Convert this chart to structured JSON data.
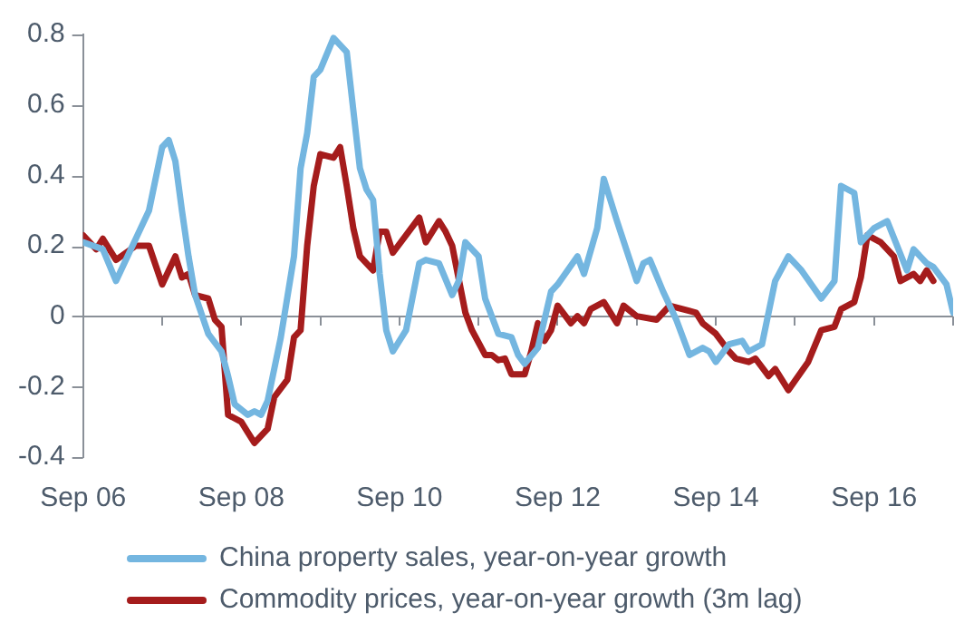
{
  "chart_data": {
    "type": "line",
    "xlim": [
      "2006-09",
      "2017-09"
    ],
    "xticks": [
      {
        "value": "2006-09",
        "label": "Sep 06"
      },
      {
        "value": "2007-09",
        "label": null
      },
      {
        "value": "2008-09",
        "label": "Sep 08"
      },
      {
        "value": "2009-09",
        "label": null
      },
      {
        "value": "2010-09",
        "label": "Sep 10"
      },
      {
        "value": "2011-09",
        "label": null
      },
      {
        "value": "2012-09",
        "label": "Sep 12"
      },
      {
        "value": "2013-09",
        "label": null
      },
      {
        "value": "2014-09",
        "label": "Sep 14"
      },
      {
        "value": "2015-09",
        "label": null
      },
      {
        "value": "2016-09",
        "label": "Sep 16"
      },
      {
        "value": "2017-09",
        "label": null
      }
    ],
    "ylim": [
      -0.4,
      0.8
    ],
    "yticks": [
      -0.4,
      -0.2,
      0,
      0.2,
      0.4,
      0.6,
      0.8
    ],
    "grid": false,
    "ref_lines": [
      {
        "axis": "y",
        "value": 0,
        "color": "#8a9098",
        "line_style": "solid"
      }
    ],
    "legend": "bottom",
    "marker": "none",
    "line_style": "solid",
    "series": [
      {
        "name": "China property sales, year-on-year growth",
        "color": "#74b6e0",
        "x": [
          "2006-09",
          "2006-12",
          "2007-02",
          "2007-05",
          "2007-07",
          "2007-09",
          "2007-10",
          "2007-11",
          "2007-12",
          "2008-01",
          "2008-02",
          "2008-04",
          "2008-06",
          "2008-07",
          "2008-08",
          "2008-10",
          "2008-11",
          "2008-12",
          "2009-01",
          "2009-03",
          "2009-05",
          "2009-06",
          "2009-07",
          "2009-08",
          "2009-09",
          "2009-11",
          "2010-01",
          "2010-03",
          "2010-04",
          "2010-05",
          "2010-06",
          "2010-07",
          "2010-08",
          "2010-10",
          "2010-12",
          "2011-01",
          "2011-03",
          "2011-05",
          "2011-06",
          "2011-07",
          "2011-09",
          "2011-10",
          "2011-12",
          "2012-02",
          "2012-03",
          "2012-04",
          "2012-06",
          "2012-08",
          "2012-09",
          "2012-12",
          "2013-01",
          "2013-03",
          "2013-04",
          "2013-06",
          "2013-09",
          "2013-10",
          "2013-11",
          "2014-01",
          "2014-03",
          "2014-05",
          "2014-07",
          "2014-08",
          "2014-09",
          "2014-11",
          "2015-01",
          "2015-02",
          "2015-04",
          "2015-06",
          "2015-08",
          "2015-10",
          "2016-01",
          "2016-03",
          "2016-04",
          "2016-06",
          "2016-07",
          "2016-09",
          "2016-11",
          "2017-02",
          "2017-03",
          "2017-05",
          "2017-06",
          "2017-08",
          "2017-09"
        ],
        "values": [
          0.21,
          0.19,
          0.1,
          0.22,
          0.3,
          0.48,
          0.5,
          0.44,
          0.3,
          0.17,
          0.06,
          -0.05,
          -0.1,
          -0.17,
          -0.25,
          -0.28,
          -0.27,
          -0.28,
          -0.24,
          -0.06,
          0.17,
          0.42,
          0.52,
          0.68,
          0.7,
          0.79,
          0.75,
          0.42,
          0.36,
          0.33,
          0.12,
          -0.04,
          -0.1,
          -0.04,
          0.15,
          0.16,
          0.15,
          0.06,
          0.1,
          0.21,
          0.17,
          0.05,
          -0.05,
          -0.06,
          -0.11,
          -0.135,
          -0.09,
          0.07,
          0.09,
          0.17,
          0.12,
          0.25,
          0.39,
          0.27,
          0.1,
          0.15,
          0.16,
          0.07,
          -0.01,
          -0.11,
          -0.09,
          -0.1,
          -0.13,
          -0.08,
          -0.07,
          -0.1,
          -0.08,
          0.1,
          0.17,
          0.13,
          0.05,
          0.1,
          0.37,
          0.35,
          0.21,
          0.25,
          0.27,
          0.13,
          0.19,
          0.15,
          0.14,
          0.09,
          0.01
        ]
      },
      {
        "name": "Commodity prices, year-on-year growth (3m lag)",
        "color": "#a51c1c",
        "x": [
          "2006-09",
          "2006-11",
          "2006-12",
          "2007-02",
          "2007-05",
          "2007-07",
          "2007-09",
          "2007-11",
          "2007-12",
          "2008-01",
          "2008-02",
          "2008-04",
          "2008-05",
          "2008-06",
          "2008-07",
          "2008-09",
          "2008-10",
          "2008-11",
          "2009-01",
          "2009-02",
          "2009-04",
          "2009-05",
          "2009-06",
          "2009-07",
          "2009-08",
          "2009-09",
          "2009-11",
          "2009-12",
          "2010-01",
          "2010-02",
          "2010-03",
          "2010-05",
          "2010-06",
          "2010-07",
          "2010-08",
          "2010-12",
          "2011-01",
          "2011-03",
          "2011-04",
          "2011-05",
          "2011-07",
          "2011-08",
          "2011-10",
          "2011-11",
          "2011-12",
          "2012-01",
          "2012-02",
          "2012-04",
          "2012-05",
          "2012-06",
          "2012-07",
          "2012-08",
          "2012-09",
          "2012-11",
          "2012-12",
          "2013-01",
          "2013-02",
          "2013-04",
          "2013-06",
          "2013-07",
          "2013-09",
          "2013-12",
          "2014-02",
          "2014-06",
          "2014-07",
          "2014-09",
          "2014-11",
          "2014-12",
          "2015-02",
          "2015-03",
          "2015-05",
          "2015-06",
          "2015-08",
          "2015-11",
          "2016-01",
          "2016-03",
          "2016-04",
          "2016-06",
          "2016-07",
          "2016-08",
          "2016-10",
          "2016-12",
          "2017-01",
          "2017-03",
          "2017-04",
          "2017-05",
          "2017-06"
        ],
        "values": [
          0.23,
          0.19,
          0.22,
          0.16,
          0.2,
          0.2,
          0.09,
          0.17,
          0.11,
          0.12,
          0.06,
          0.05,
          -0.01,
          -0.03,
          -0.28,
          -0.3,
          -0.33,
          -0.36,
          -0.32,
          -0.23,
          -0.18,
          -0.06,
          -0.04,
          0.2,
          0.37,
          0.46,
          0.45,
          0.48,
          0.37,
          0.25,
          0.17,
          0.13,
          0.24,
          0.24,
          0.18,
          0.28,
          0.21,
          0.27,
          0.24,
          0.2,
          0.01,
          -0.04,
          -0.11,
          -0.11,
          -0.125,
          -0.12,
          -0.165,
          -0.165,
          -0.1,
          -0.02,
          -0.07,
          -0.04,
          0.03,
          -0.02,
          0,
          -0.02,
          0.02,
          0.04,
          -0.02,
          0.03,
          0,
          -0.01,
          0.03,
          0.01,
          -0.02,
          -0.05,
          -0.1,
          -0.12,
          -0.13,
          -0.12,
          -0.17,
          -0.15,
          -0.21,
          -0.13,
          -0.04,
          -0.03,
          0.02,
          0.04,
          0.11,
          0.23,
          0.21,
          0.17,
          0.1,
          0.12,
          0.1,
          0.13,
          0.1
        ]
      }
    ]
  }
}
